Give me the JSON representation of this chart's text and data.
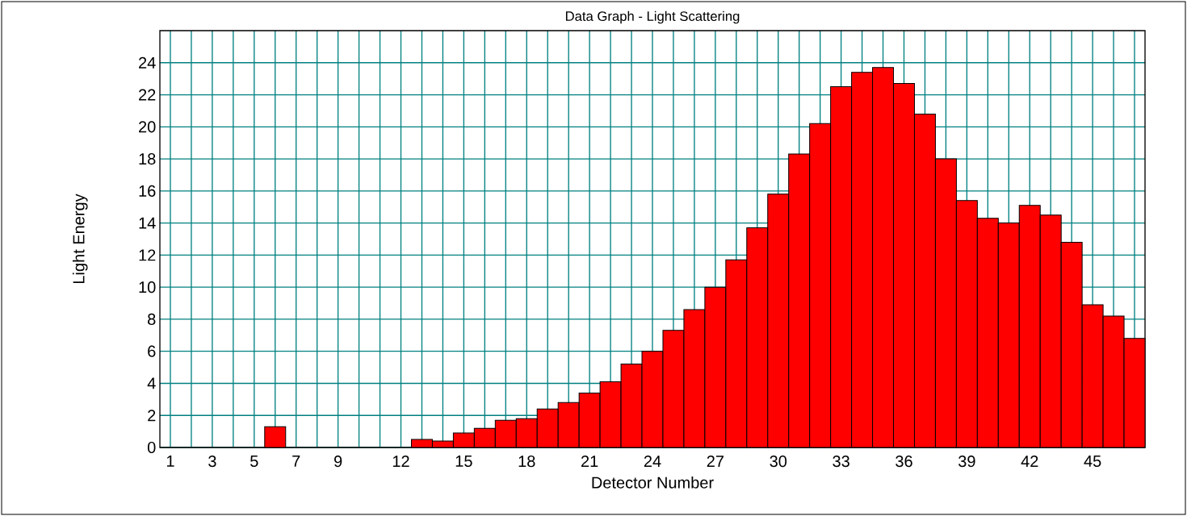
{
  "chart_data": {
    "type": "bar",
    "title": "Data Graph - Light Scattering",
    "xlabel": "Detector Number",
    "ylabel": "Light Energy",
    "categories": [
      "1",
      null,
      "3",
      null,
      "5",
      null,
      "7",
      null,
      "9",
      null,
      null,
      "12",
      null,
      null,
      "15",
      null,
      null,
      "18",
      null,
      null,
      "21",
      null,
      null,
      "24",
      null,
      null,
      "27",
      null,
      null,
      "30",
      null,
      null,
      "33",
      null,
      null,
      "36",
      null,
      null,
      "39",
      null,
      null,
      "42",
      null,
      null,
      "45",
      null,
      null
    ],
    "values": [
      0,
      0,
      0,
      0,
      0,
      1.3,
      0,
      0,
      0,
      0,
      0,
      0,
      0.5,
      0.4,
      0.9,
      1.2,
      1.7,
      1.8,
      2.4,
      2.8,
      3.4,
      4.1,
      5.2,
      6.0,
      7.3,
      8.6,
      10.0,
      11.7,
      13.7,
      15.8,
      18.3,
      20.2,
      22.5,
      23.4,
      23.7,
      22.7,
      20.8,
      18.0,
      15.4,
      14.3,
      14.0,
      15.1,
      14.5,
      12.8,
      8.9,
      8.2,
      6.8
    ],
    "color": "#ff0000",
    "ylim": [
      0,
      26
    ],
    "yticks": [
      0,
      2,
      4,
      6,
      8,
      10,
      12,
      14,
      16,
      18,
      20,
      22,
      24
    ],
    "grid": true
  }
}
